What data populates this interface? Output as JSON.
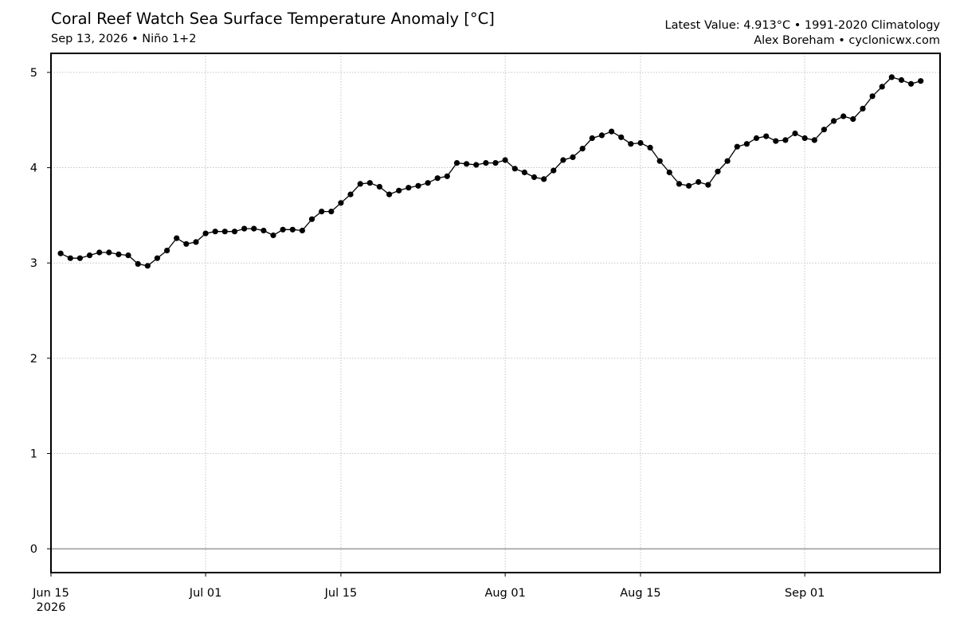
{
  "header": {
    "title": "Coral Reef Watch Sea Surface Temperature Anomaly [°C]",
    "subtitle": "Sep 13, 2026 • Niño 1+2",
    "info_line1": "Latest Value: 4.913°C • 1991-2020 Climatology",
    "info_line2": "Alex Boreham • cyclonicwx.com"
  },
  "chart_data": {
    "type": "line",
    "title": "Coral Reef Watch Sea Surface Temperature Anomaly [°C]",
    "subtitle": "Sep 13, 2026 • Niño 1+2",
    "xlabel": "",
    "ylabel": "",
    "x_start": "2026-06-16",
    "x_step_days": 1,
    "xlim": [
      "2026-06-15",
      "2026-09-15"
    ],
    "ylim": [
      -0.25,
      5.2
    ],
    "x_ticks": [
      {
        "date": "2026-06-15",
        "label": "Jun 15",
        "sublabel": "2026"
      },
      {
        "date": "2026-07-01",
        "label": "Jul 01"
      },
      {
        "date": "2026-07-15",
        "label": "Jul 15"
      },
      {
        "date": "2026-08-01",
        "label": "Aug 01"
      },
      {
        "date": "2026-08-15",
        "label": "Aug 15"
      },
      {
        "date": "2026-09-01",
        "label": "Sep 01"
      }
    ],
    "y_ticks": [
      0,
      1,
      2,
      3,
      4,
      5
    ],
    "grid": true,
    "zero_line": true,
    "marker": "circle",
    "line_color": "#000000",
    "series": [
      {
        "values": [
          3.1,
          3.05,
          3.05,
          3.08,
          3.11,
          3.11,
          3.09,
          3.08,
          2.99,
          2.97,
          3.05,
          3.13,
          3.26,
          3.2,
          3.22,
          3.31,
          3.33,
          3.33,
          3.33,
          3.36,
          3.36,
          3.34,
          3.29,
          3.35,
          3.35,
          3.34,
          3.46,
          3.54,
          3.54,
          3.63,
          3.72,
          3.83,
          3.84,
          3.8,
          3.72,
          3.76,
          3.79,
          3.81,
          3.84,
          3.89,
          3.91,
          4.05,
          4.04,
          4.03,
          4.05,
          4.05,
          4.08,
          3.99,
          3.95,
          3.9,
          3.88,
          3.97,
          4.08,
          4.11,
          4.2,
          4.31,
          4.34,
          4.38,
          4.32,
          4.25,
          4.26,
          4.21,
          4.07,
          3.95,
          3.83,
          3.81,
          3.85,
          3.82,
          3.96,
          4.07,
          4.22,
          4.25,
          4.31,
          4.33,
          4.28,
          4.29,
          4.36,
          4.31,
          4.29,
          4.4,
          4.49,
          4.54,
          4.51,
          4.62,
          4.75,
          4.85,
          4.95,
          4.92,
          4.88,
          4.91
        ]
      }
    ]
  }
}
